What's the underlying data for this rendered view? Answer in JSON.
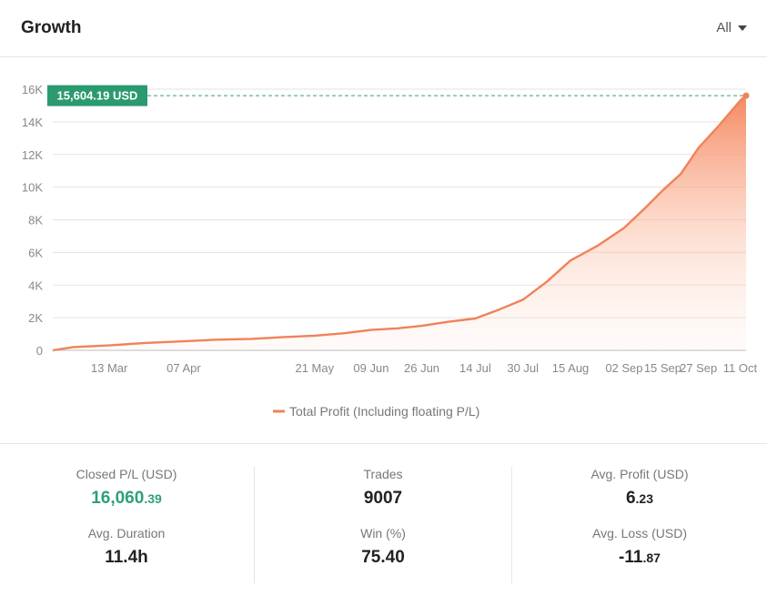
{
  "header": {
    "title": "Growth",
    "period": "All"
  },
  "chart_data": {
    "type": "area",
    "title": "",
    "xlabel": "",
    "ylabel": "",
    "x_ticks": [
      "13 Mar",
      "07 Apr",
      "21 May",
      "09 Jun",
      "26 Jun",
      "14 Jul",
      "30 Jul",
      "15 Aug",
      "02 Sep",
      "15 Sep",
      "27 Sep",
      "11 Oct"
    ],
    "y_ticks": [
      "0",
      "2K",
      "4K",
      "6K",
      "8K",
      "10K",
      "12K",
      "14K",
      "16K"
    ],
    "ylim": [
      0,
      16000
    ],
    "grid": true,
    "legend": "bottom",
    "series": [
      {
        "name": "Total Profit (Including floating P/L)",
        "color": "#f0825a",
        "x": [
          "22 Feb",
          "01 Mar",
          "13 Mar",
          "25 Mar",
          "07 Apr",
          "18 Apr",
          "30 Apr",
          "10 May",
          "21 May",
          "31 May",
          "09 Jun",
          "18 Jun",
          "26 Jun",
          "05 Jul",
          "14 Jul",
          "22 Jul",
          "30 Jul",
          "07 Aug",
          "15 Aug",
          "24 Aug",
          "02 Sep",
          "09 Sep",
          "15 Sep",
          "21 Sep",
          "27 Sep",
          "04 Oct",
          "11 Oct",
          "13 Oct"
        ],
        "values": [
          0,
          200,
          300,
          450,
          550,
          650,
          700,
          800,
          900,
          1050,
          1250,
          1350,
          1500,
          1750,
          1950,
          2500,
          3100,
          4200,
          5500,
          6400,
          7500,
          8700,
          9800,
          10800,
          12400,
          13800,
          15300,
          15604.19
        ]
      }
    ],
    "annotation": {
      "value_label": "15,604.19 USD"
    }
  },
  "stats": {
    "closed_pl": {
      "label": "Closed P/L (USD)",
      "int": "16,060",
      "dec": ".39"
    },
    "avg_duration": {
      "label": "Avg. Duration",
      "value": "11.4h"
    },
    "trades": {
      "label": "Trades",
      "value": "9007"
    },
    "win_pct": {
      "label": "Win (%)",
      "value": "75.40"
    },
    "avg_profit": {
      "label": "Avg. Profit (USD)",
      "int": "6",
      "dec": ".23"
    },
    "avg_loss": {
      "label": "Avg. Loss (USD)",
      "int": "-11",
      "dec": ".87"
    }
  },
  "colors": {
    "accent_green": "#2ea078",
    "line": "#f0825a",
    "annotation_bg": "#2b9a6e"
  }
}
